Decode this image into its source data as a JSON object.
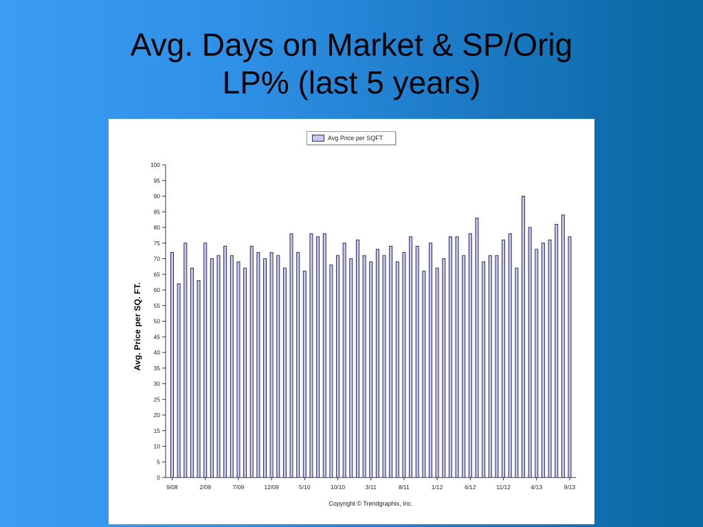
{
  "slide": {
    "title_line1": "Avg. Days on Market & SP/Orig",
    "title_line2": "LP% (last 5 years)"
  },
  "chart_data": {
    "type": "bar",
    "legend": [
      "Avg Price per SQFT"
    ],
    "ylabel": "Avg. Price per SQ. FT.",
    "xlabel": "",
    "ylim": [
      0,
      100
    ],
    "yticks": [
      0,
      5,
      10,
      15,
      20,
      25,
      30,
      35,
      40,
      45,
      50,
      55,
      60,
      65,
      70,
      75,
      80,
      85,
      90,
      95,
      100
    ],
    "xtick_labels": [
      "9/08",
      "2/09",
      "7/09",
      "12/09",
      "5/10",
      "10/10",
      "3/11",
      "8/11",
      "1/12",
      "6/12",
      "11/12",
      "4/13",
      "9/13"
    ],
    "categories": [
      "9/08",
      "10/08",
      "11/08",
      "12/08",
      "1/09",
      "2/09",
      "3/09",
      "4/09",
      "5/09",
      "6/09",
      "7/09",
      "8/09",
      "9/09",
      "10/09",
      "11/09",
      "12/09",
      "1/10",
      "2/10",
      "3/10",
      "4/10",
      "5/10",
      "6/10",
      "7/10",
      "8/10",
      "9/10",
      "10/10",
      "11/10",
      "12/10",
      "1/11",
      "2/11",
      "3/11",
      "4/11",
      "5/11",
      "6/11",
      "7/11",
      "8/11",
      "9/11",
      "10/11",
      "11/11",
      "12/11",
      "1/12",
      "2/12",
      "3/12",
      "4/12",
      "5/12",
      "6/12",
      "7/12",
      "8/12",
      "9/12",
      "10/12",
      "11/12",
      "12/12",
      "1/13",
      "2/13",
      "3/13",
      "4/13",
      "5/13",
      "6/13",
      "7/13",
      "8/13",
      "9/13"
    ],
    "series": [
      {
        "name": "Avg Price per SQFT",
        "color": "#c6c8f4",
        "values": [
          72,
          62,
          75,
          67,
          63,
          75,
          70,
          71,
          74,
          71,
          69,
          67,
          74,
          72,
          70,
          72,
          71,
          67,
          78,
          72,
          66,
          78,
          77,
          78,
          68,
          71,
          75,
          70,
          76,
          71,
          69,
          73,
          71,
          74,
          69,
          72,
          77,
          74,
          66,
          75,
          67,
          70,
          77,
          77,
          71,
          78,
          83,
          69,
          71,
          71,
          76,
          78,
          67,
          90,
          80,
          73,
          75,
          76,
          81,
          84,
          77
        ]
      }
    ],
    "grid": false,
    "legend_position": "top-center",
    "copyright": "Copyright © Trendgraphix, Inc."
  }
}
